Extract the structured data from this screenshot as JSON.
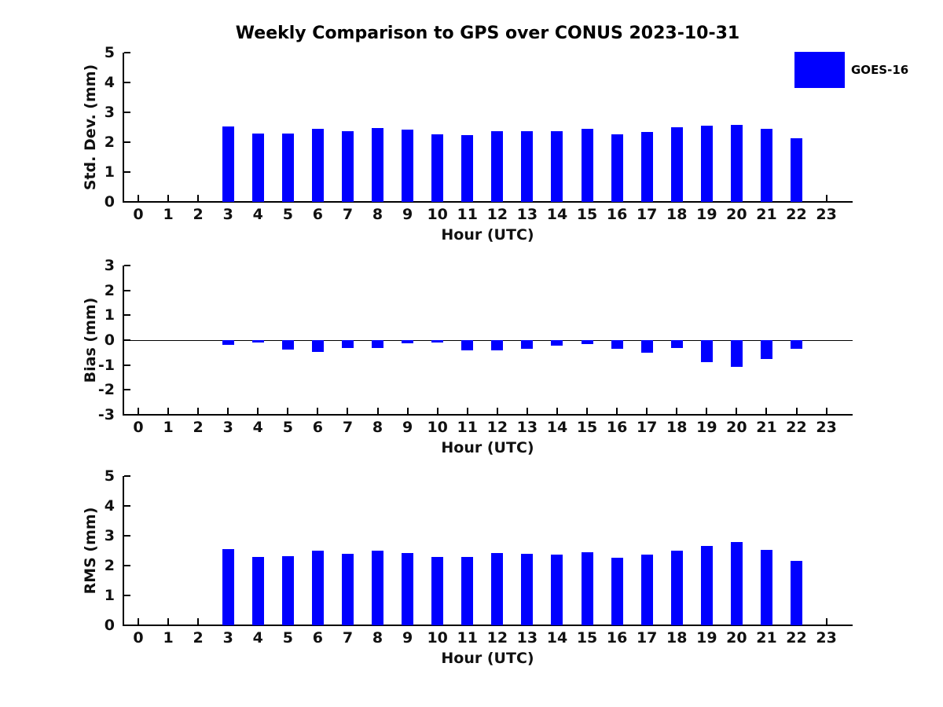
{
  "figure": {
    "title": "Weekly Comparison to GPS over CONUS 2023-10-31",
    "legend": {
      "label": "GOES-16",
      "color": "#0000ff"
    }
  },
  "chart_data": [
    {
      "type": "bar",
      "ylabel": "Std. Dev. (mm)",
      "xlabel": "Hour (UTC)",
      "ylim": [
        0,
        5
      ],
      "yticks": [
        0,
        1,
        2,
        3,
        4,
        5
      ],
      "xticks": [
        0,
        1,
        2,
        3,
        4,
        5,
        6,
        7,
        8,
        9,
        10,
        11,
        12,
        13,
        14,
        15,
        16,
        17,
        18,
        19,
        20,
        21,
        22,
        23
      ],
      "grid": false,
      "legend_position": "upper-right-outside",
      "series": [
        {
          "name": "GOES-16",
          "color": "#0000ff",
          "x": [
            3,
            4,
            5,
            6,
            7,
            8,
            9,
            10,
            11,
            12,
            13,
            14,
            15,
            16,
            17,
            18,
            19,
            20,
            21,
            22
          ],
          "values": [
            2.53,
            2.3,
            2.3,
            2.45,
            2.38,
            2.48,
            2.41,
            2.26,
            2.24,
            2.37,
            2.36,
            2.36,
            2.46,
            2.27,
            2.33,
            2.49,
            2.56,
            2.59,
            2.44,
            2.14
          ]
        }
      ]
    },
    {
      "type": "bar",
      "ylabel": "Bias (mm)",
      "xlabel": "Hour (UTC)",
      "ylim": [
        -3,
        3
      ],
      "yticks": [
        -3,
        -2,
        -1,
        0,
        1,
        2,
        3
      ],
      "xticks": [
        0,
        1,
        2,
        3,
        4,
        5,
        6,
        7,
        8,
        9,
        10,
        11,
        12,
        13,
        14,
        15,
        16,
        17,
        18,
        19,
        20,
        21,
        22,
        23
      ],
      "grid": false,
      "zero_line": true,
      "series": [
        {
          "name": "GOES-16",
          "color": "#0000ff",
          "x": [
            3,
            4,
            5,
            6,
            7,
            8,
            9,
            10,
            11,
            12,
            13,
            14,
            15,
            16,
            17,
            18,
            19,
            20,
            21,
            22
          ],
          "values": [
            -0.2,
            -0.08,
            -0.37,
            -0.48,
            -0.33,
            -0.31,
            -0.13,
            -0.09,
            -0.4,
            -0.41,
            -0.36,
            -0.23,
            -0.17,
            -0.36,
            -0.52,
            -0.33,
            -0.87,
            -1.08,
            -0.75,
            -0.35
          ]
        }
      ]
    },
    {
      "type": "bar",
      "ylabel": "RMS (mm)",
      "xlabel": "Hour (UTC)",
      "ylim": [
        0,
        5
      ],
      "yticks": [
        0,
        1,
        2,
        3,
        4,
        5
      ],
      "xticks": [
        0,
        1,
        2,
        3,
        4,
        5,
        6,
        7,
        8,
        9,
        10,
        11,
        12,
        13,
        14,
        15,
        16,
        17,
        18,
        19,
        20,
        21,
        22,
        23
      ],
      "grid": false,
      "series": [
        {
          "name": "GOES-16",
          "color": "#0000ff",
          "x": [
            3,
            4,
            5,
            6,
            7,
            8,
            9,
            10,
            11,
            12,
            13,
            14,
            15,
            16,
            17,
            18,
            19,
            20,
            21,
            22
          ],
          "values": [
            2.55,
            2.29,
            2.32,
            2.49,
            2.39,
            2.49,
            2.42,
            2.29,
            2.29,
            2.42,
            2.4,
            2.37,
            2.45,
            2.27,
            2.37,
            2.51,
            2.67,
            2.78,
            2.52,
            2.17
          ]
        }
      ]
    }
  ]
}
